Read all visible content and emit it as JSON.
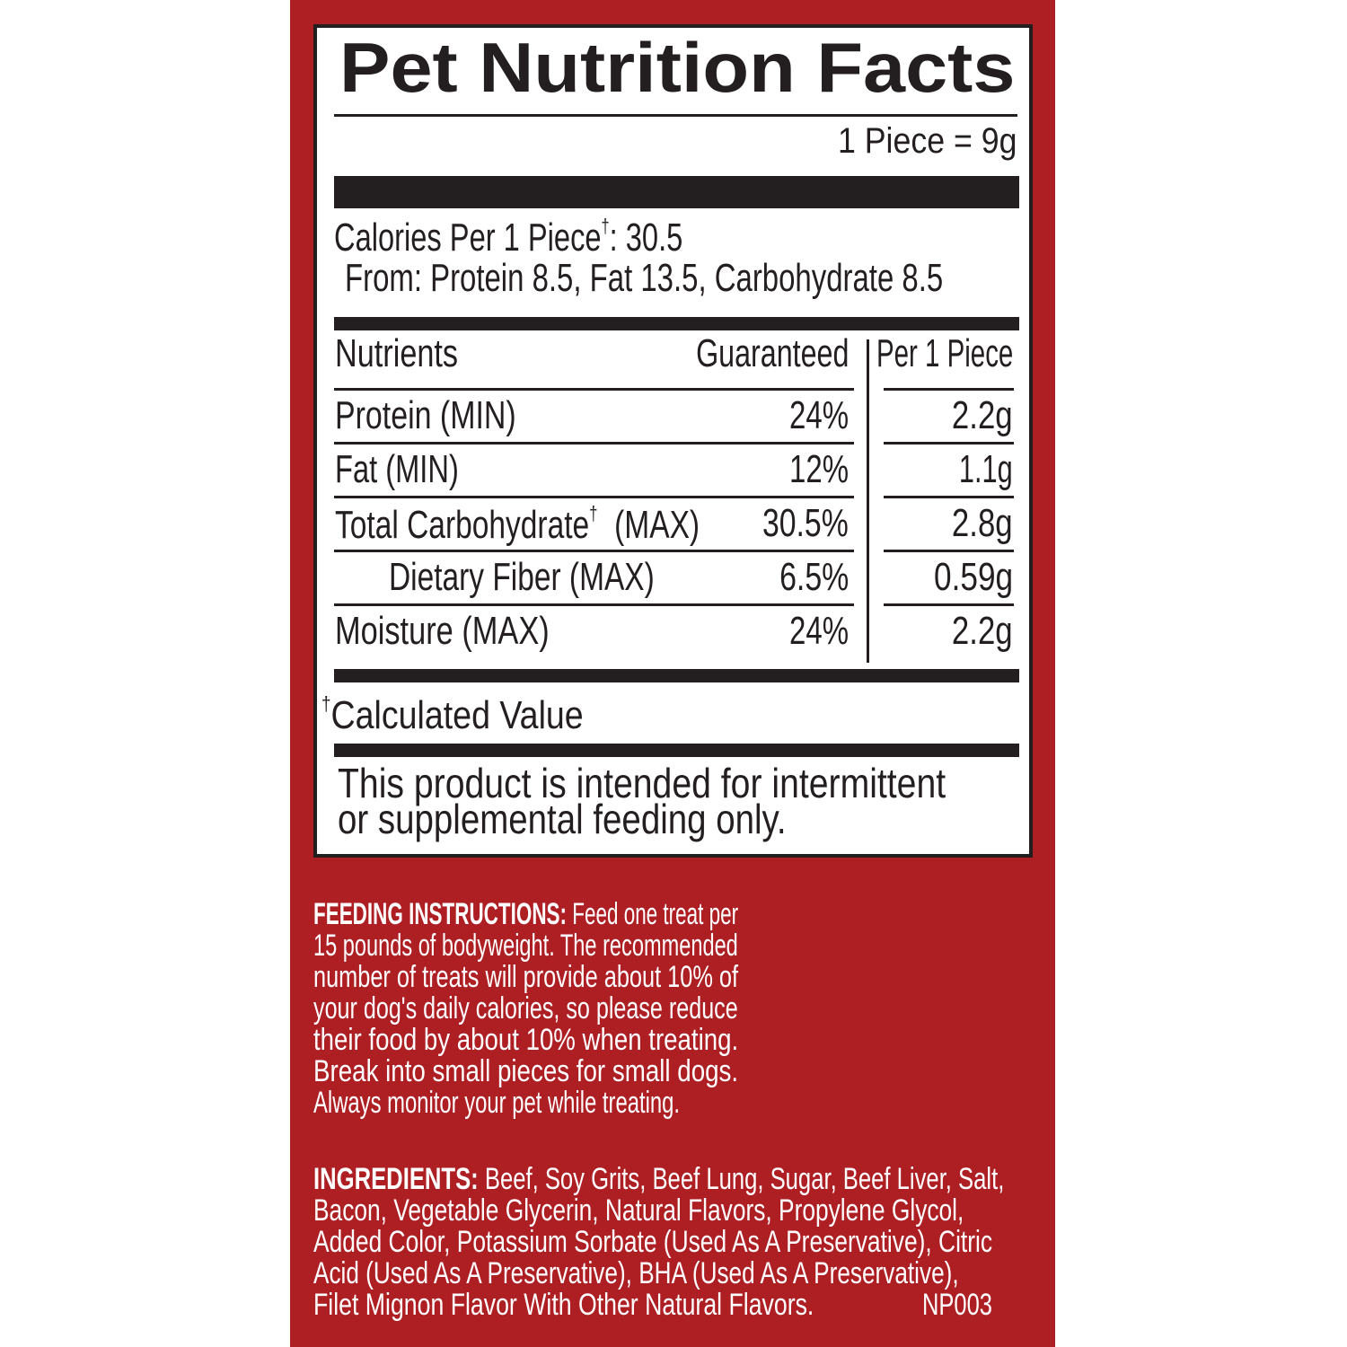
{
  "colors": {
    "panel_red": "#ae1f24",
    "ink": "#231f20",
    "label_bg": "#ffffff"
  },
  "label": {
    "title": "Pet Nutrition Facts",
    "serving": "1 Piece = 9g",
    "calories": {
      "prefix": "Calories Per 1 Piece",
      "dagger": "†",
      "value": ": 30.5"
    },
    "calories_from": "From: Protein 8.5, Fat 13.5, Carbohydrate 8.5",
    "table": {
      "headers": {
        "nutrients": "Nutrients",
        "guaranteed": "Guaranteed",
        "per_piece": "Per 1 Piece"
      },
      "rows": [
        {
          "name": "Protein (MIN)",
          "guaranteed": "24%",
          "per_piece": "2.2g"
        },
        {
          "name": "Fat (MIN)",
          "guaranteed": "12%",
          "per_piece": "1.1g"
        },
        {
          "name": "Total Carbohydrate",
          "dagger": "†",
          "qualifier": "  (MAX)",
          "guaranteed": "30.5%",
          "per_piece": "2.8g"
        },
        {
          "name": "Dietary Fiber (MAX)",
          "guaranteed": "6.5%",
          "per_piece": "0.59g"
        },
        {
          "name": "Moisture (MAX)",
          "guaranteed": "24%",
          "per_piece": "2.2g"
        }
      ]
    },
    "footnote": {
      "dagger": "†",
      "text": "Calculated Value"
    },
    "disclaimer": [
      "This product is intended for intermittent",
      "or supplemental feeding only."
    ]
  },
  "feeding": {
    "heading": "FEEDING INSTRUCTIONS:",
    "lines": [
      " Feed one treat per",
      "15 pounds of bodyweight. The recommended",
      "number of treats will provide about 10% of",
      "your dog's daily calories, so please reduce",
      "their food by about 10% when treating.",
      "Break into small pieces for small dogs.",
      "Always monitor your pet while treating."
    ]
  },
  "ingredients": {
    "heading": "INGREDIENTS:",
    "lines": [
      " Beef, Soy Grits, Beef Lung, Sugar, Beef Liver, Salt,",
      "Bacon, Vegetable Glycerin, Natural Flavors, Propylene Glycol,",
      "Added Color, Potassium Sorbate (Used As A Preservative), Citric",
      "Acid (Used As A Preservative), BHA (Used As A Preservative),",
      "Filet Mignon Flavor With Other Natural Flavors."
    ],
    "code": "NP003"
  }
}
